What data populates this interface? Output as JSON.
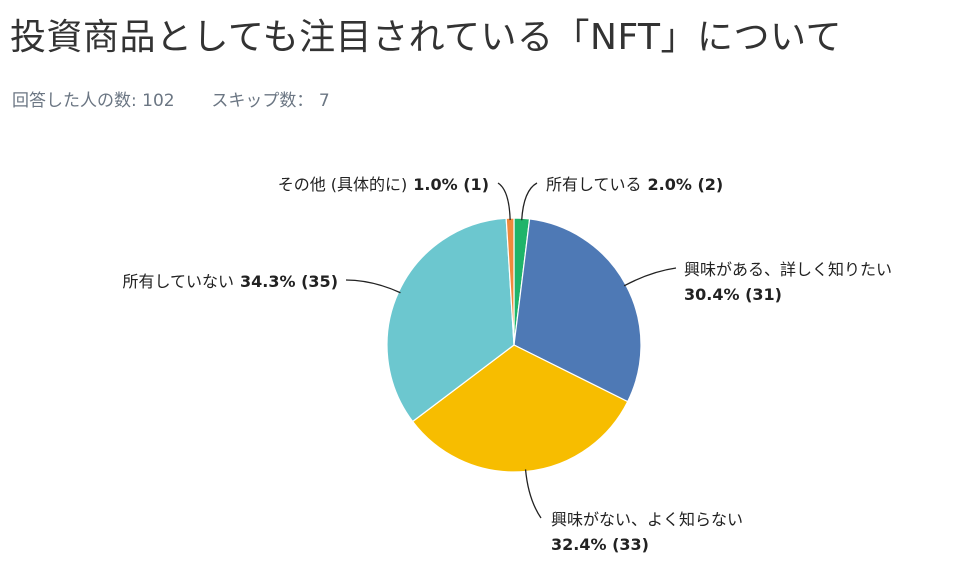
{
  "page": {
    "title": "投資商品としても注目されている「NFT」について",
    "respondents_label": "回答した人の数:",
    "respondents": "102",
    "skipped_label": "スキップ数：",
    "skipped": "7"
  },
  "chart_data": {
    "type": "pie",
    "title": "投資商品としても注目されている「NFT」について",
    "slices": [
      {
        "label": "所有している",
        "percent": 2.0,
        "count": 2,
        "color": "#1fb46a",
        "text": "2.0% (2)"
      },
      {
        "label": "興味がある、詳しく知りたい",
        "percent": 30.4,
        "count": 31,
        "color": "#4e79b5",
        "text": "30.4% (31)"
      },
      {
        "label": "興味がない、よく知らない",
        "percent": 32.4,
        "count": 33,
        "color": "#f7bd00",
        "text": "32.4% (33)"
      },
      {
        "label": "所有していない",
        "percent": 34.3,
        "count": 35,
        "color": "#6cc7cf",
        "text": "34.3% (35)"
      },
      {
        "label": "その他 (具体的に)",
        "percent": 1.0,
        "count": 1,
        "color": "#f08a3c",
        "text": "1.0% (1)"
      }
    ]
  }
}
